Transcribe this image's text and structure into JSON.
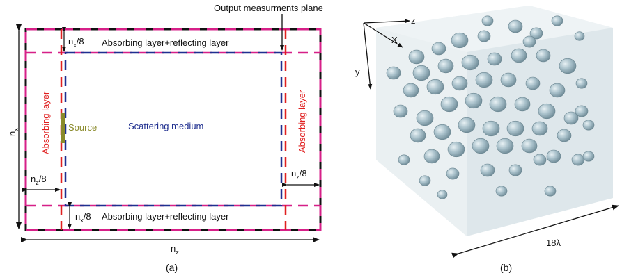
{
  "panel_a": {
    "output_plane_label": "Output measurments plane",
    "top_layer_label": "Absorbing layer+reflecting layer",
    "bottom_layer_label": "Absorbing layer+reflecting layer",
    "left_layer_label": "Absorbing layer",
    "right_layer_label": "Absorbing layer",
    "source_label": "Source",
    "medium_label": "Scattering medium",
    "dim_nx8_top": "n",
    "dim_nx8_top_sub": "x",
    "dim_nx8_top_tail": "/8",
    "dim_nx8_bottom": "n",
    "dim_nx8_bottom_sub": "x",
    "dim_nx8_bottom_tail": "/8",
    "dim_nz8_left": "n",
    "dim_nz8_left_sub": "z",
    "dim_nz8_left_tail": "/8",
    "dim_nz8_right": "n",
    "dim_nz8_right_sub": "z",
    "dim_nz8_right_tail": "/8",
    "dim_nx": "n",
    "dim_nx_sub": "x",
    "dim_nz": "n",
    "dim_nz_sub": "z",
    "caption": "(a)"
  },
  "panel_b": {
    "axis_z": "z",
    "axis_x": "X",
    "axis_y": "y",
    "scale_label": "18λ",
    "caption": "(b)"
  },
  "colors": {
    "red": "#e02020",
    "magenta": "#d62088",
    "blue": "#1f2f8f",
    "black": "#111111",
    "olive": "#8a8a2a",
    "blob": "#a9c2cc",
    "box_face": "#dfe8ec"
  }
}
